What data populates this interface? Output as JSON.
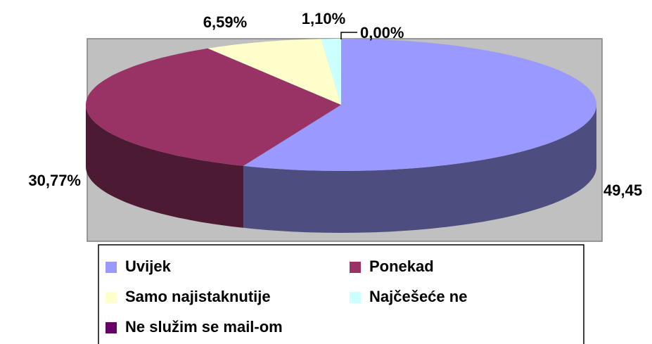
{
  "chart_data": {
    "type": "pie3d",
    "categories": [
      "Uvijek",
      "Ponekad",
      "Samo najistaknutije",
      "Najčešeće ne",
      "Ne služim se mail-om"
    ],
    "values": [
      49.45,
      30.77,
      6.59,
      1.1,
      0.0
    ],
    "value_labels": [
      "49,45",
      "30,77%",
      "6,59%",
      "1,10%",
      "0,00%"
    ],
    "colors": [
      "#9999ff",
      "#993366",
      "#ffffcc",
      "#ccffff",
      "#660066"
    ],
    "legend": "bottom"
  }
}
